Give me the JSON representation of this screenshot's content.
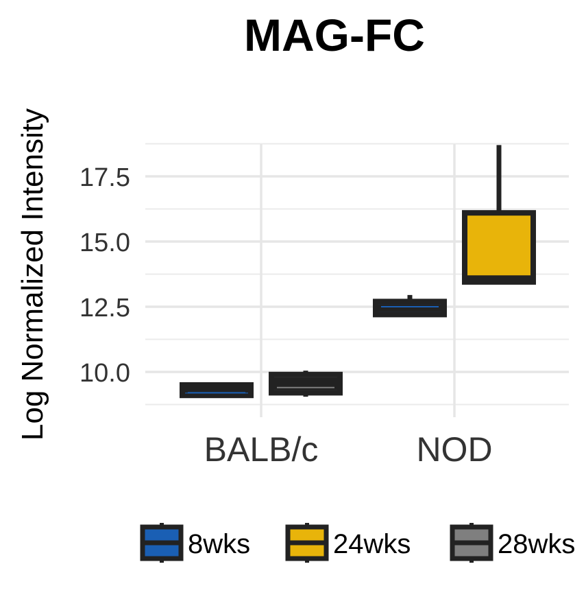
{
  "chart_data": {
    "type": "box",
    "title": "MAG-FC",
    "ylabel": "Log Normalized Intensity",
    "xlabel": "",
    "categories": [
      "BALB/c",
      "NOD"
    ],
    "ylim": [
      8.8,
      19.0
    ],
    "yticks": [
      10.0,
      12.5,
      15.0,
      17.5
    ],
    "ytick_labels": [
      "10.0",
      "12.5",
      "15.0",
      "17.5"
    ],
    "grid": true,
    "legend_position": "bottom",
    "series": [
      {
        "name": "8wks",
        "color": "#1a5fb4",
        "boxes": [
          {
            "category": "BALB/c",
            "min": 9.05,
            "q1": 9.1,
            "median": 9.2,
            "q3": 9.5,
            "max": 9.55
          },
          {
            "category": "NOD",
            "min": 12.15,
            "q1": 12.2,
            "median": 12.5,
            "q3": 12.7,
            "max": 12.95
          }
        ]
      },
      {
        "name": "24wks",
        "color": "#e8b40a",
        "boxes": [
          {
            "category": "NOD",
            "min": 13.4,
            "q1": 13.45,
            "median": 13.6,
            "q3": 16.1,
            "max": 18.7
          }
        ]
      },
      {
        "name": "28wks",
        "color": "#7f7f7f",
        "boxes": [
          {
            "category": "BALB/c",
            "min": 9.05,
            "q1": 9.2,
            "median": 9.4,
            "q3": 9.9,
            "max": 10.05
          }
        ]
      }
    ]
  }
}
